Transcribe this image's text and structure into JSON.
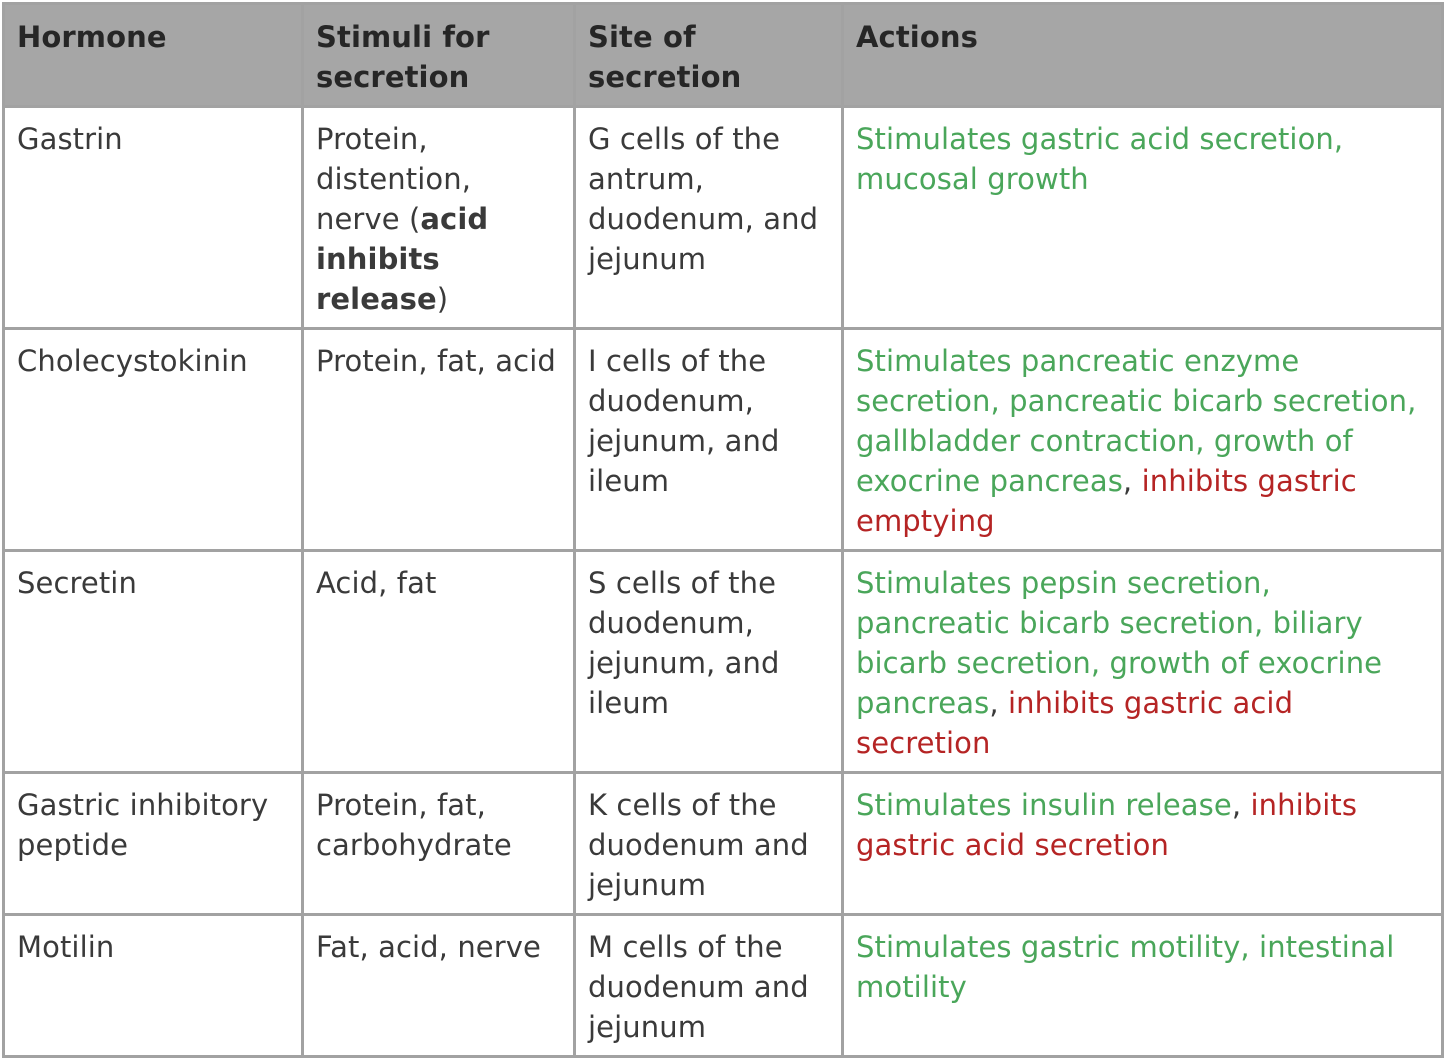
{
  "table": {
    "headers": [
      "Hormone",
      "Stimuli for secretion",
      "Site of secretion",
      "Actions"
    ],
    "colors": {
      "header_bg": "#a6a6a6",
      "stimulates": "#4aa65a",
      "inhibits": "#b52424",
      "border": "#a2a2a2"
    },
    "rows": [
      {
        "hormone": "Gastrin",
        "stimuli_pre": "Protein, distention, nerve (",
        "stimuli_bold": "acid inhibits release",
        "stimuli_post": ")",
        "site": "G cells of the antrum, duodenum, and jejunum",
        "action_stimulates": "Stimulates gastric acid secretion, mucosal growth"
      },
      {
        "hormone": "Cholecystokinin",
        "stimuli": "Protein, fat, acid",
        "site": "I cells of the duodenum, jejunum, and ileum",
        "action_stimulates": "Stimulates pancreatic enzyme secretion, pancreatic bicarb secretion, gallbladder contraction, growth of exocrine pancreas",
        "separator": ",",
        "action_inhibits": "inhibits gastric emptying"
      },
      {
        "hormone": "Secretin",
        "stimuli": "Acid, fat",
        "site": "S cells of the duodenum, jejunum, and ileum",
        "action_stimulates": "Stimulates pepsin secretion, pancreatic bicarb secretion, biliary bicarb secretion, growth of exocrine pancreas",
        "separator": ",",
        "action_inhibits": "inhibits gastric acid secretion"
      },
      {
        "hormone": "Gastric inhibitory peptide",
        "stimuli": "Protein, fat, carbohydrate",
        "site": "K cells of the duodenum and jejunum",
        "action_stimulates": "Stimulates insulin release",
        "separator": ",",
        "action_inhibits": "inhibits gastric acid secretion"
      },
      {
        "hormone": "Motilin",
        "stimuli": "Fat, acid, nerve",
        "site": "M cells of the duodenum and jejunum",
        "action_stimulates": "Stimulates gastric motility, intestinal motility"
      }
    ]
  }
}
